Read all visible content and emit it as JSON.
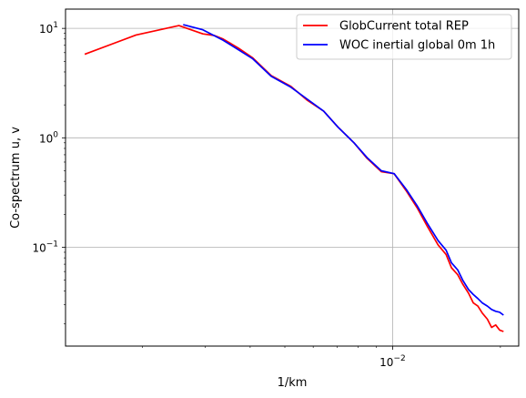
{
  "chart_data": {
    "type": "line",
    "xlabel": "1/km",
    "ylabel": "Co-spectrum u, v",
    "xscale": "log",
    "yscale": "log",
    "xlim": [
      0.00122,
      0.0225
    ],
    "ylim": [
      0.0125,
      15
    ],
    "x_tick_labels": [
      {
        "value": 0.01,
        "label": "10^-2"
      }
    ],
    "y_tick_labels": [
      {
        "value": 0.1,
        "label": "10^-1"
      },
      {
        "value": 1,
        "label": "10^0"
      },
      {
        "value": 10,
        "label": "10^1"
      }
    ],
    "grid": true,
    "legend_position": "top-right",
    "series": [
      {
        "name": "GlobCurrent total REP",
        "color": "#ff0000",
        "points": [
          [
            0.00138,
            5.8
          ],
          [
            0.00192,
            8.7
          ],
          [
            0.00253,
            10.6
          ],
          [
            0.00295,
            8.9
          ],
          [
            0.00318,
            8.6
          ],
          [
            0.00336,
            8.0
          ],
          [
            0.00371,
            6.6
          ],
          [
            0.00406,
            5.4
          ],
          [
            0.00458,
            3.7
          ],
          [
            0.0052,
            2.95
          ],
          [
            0.00578,
            2.2
          ],
          [
            0.00642,
            1.75
          ],
          [
            0.00704,
            1.25
          ],
          [
            0.0078,
            0.9
          ],
          [
            0.00848,
            0.65
          ],
          [
            0.0093,
            0.49
          ],
          [
            0.0101,
            0.47
          ],
          [
            0.0109,
            0.33
          ],
          [
            0.0117,
            0.23
          ],
          [
            0.0125,
            0.155
          ],
          [
            0.0134,
            0.105
          ],
          [
            0.0141,
            0.086
          ],
          [
            0.0146,
            0.065
          ],
          [
            0.0152,
            0.056
          ],
          [
            0.0157,
            0.046
          ],
          [
            0.0163,
            0.038
          ],
          [
            0.0168,
            0.031
          ],
          [
            0.0173,
            0.029
          ],
          [
            0.0178,
            0.025
          ],
          [
            0.0184,
            0.022
          ],
          [
            0.0189,
            0.0185
          ],
          [
            0.0194,
            0.0195
          ],
          [
            0.0199,
            0.0175
          ],
          [
            0.0204,
            0.017
          ]
        ]
      },
      {
        "name": "WOC inertial global 0m 1h",
        "color": "#0000ff",
        "points": [
          [
            0.0026,
            10.8
          ],
          [
            0.00295,
            9.7
          ],
          [
            0.00336,
            7.8
          ],
          [
            0.00406,
            5.3
          ],
          [
            0.00458,
            3.65
          ],
          [
            0.0052,
            2.9
          ],
          [
            0.00578,
            2.25
          ],
          [
            0.00642,
            1.75
          ],
          [
            0.00704,
            1.25
          ],
          [
            0.0078,
            0.9
          ],
          [
            0.00848,
            0.66
          ],
          [
            0.0093,
            0.5
          ],
          [
            0.0101,
            0.47
          ],
          [
            0.0109,
            0.34
          ],
          [
            0.0117,
            0.24
          ],
          [
            0.0125,
            0.165
          ],
          [
            0.0134,
            0.115
          ],
          [
            0.0141,
            0.094
          ],
          [
            0.0146,
            0.072
          ],
          [
            0.0152,
            0.062
          ],
          [
            0.0157,
            0.05
          ],
          [
            0.0163,
            0.041
          ],
          [
            0.0168,
            0.037
          ],
          [
            0.0173,
            0.034
          ],
          [
            0.0178,
            0.031
          ],
          [
            0.0184,
            0.029
          ],
          [
            0.0189,
            0.027
          ],
          [
            0.0194,
            0.026
          ],
          [
            0.0199,
            0.0255
          ],
          [
            0.0204,
            0.024
          ]
        ]
      }
    ]
  }
}
